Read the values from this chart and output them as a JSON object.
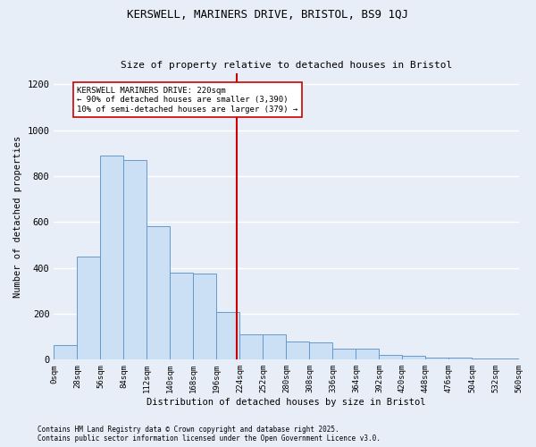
{
  "title1": "KERSWELL, MARINERS DRIVE, BRISTOL, BS9 1QJ",
  "title2": "Size of property relative to detached houses in Bristol",
  "xlabel": "Distribution of detached houses by size in Bristol",
  "ylabel": "Number of detached properties",
  "bin_edges": [
    0,
    28,
    56,
    84,
    112,
    140,
    168,
    196,
    224,
    252,
    280,
    308,
    336,
    364,
    392,
    420,
    448,
    476,
    504,
    532,
    560
  ],
  "bar_heights": [
    65,
    450,
    890,
    870,
    580,
    380,
    375,
    207,
    110,
    110,
    80,
    75,
    50,
    50,
    20,
    15,
    10,
    10,
    5,
    5
  ],
  "bar_color": "#cce0f5",
  "bar_edge_color": "#6699cc",
  "vline_x": 220,
  "vline_color": "#cc0000",
  "annotation_title": "KERSWELL MARINERS DRIVE: 220sqm",
  "annotation_line1": "← 90% of detached houses are smaller (3,390)",
  "annotation_line2": "10% of semi-detached houses are larger (379) →",
  "annotation_box_color": "#ffffff",
  "annotation_box_edge": "#cc0000",
  "background_color": "#e8eef8",
  "grid_color": "#ffffff",
  "ylim": [
    0,
    1250
  ],
  "yticks": [
    0,
    200,
    400,
    600,
    800,
    1000,
    1200
  ],
  "footer1": "Contains HM Land Registry data © Crown copyright and database right 2025.",
  "footer2": "Contains public sector information licensed under the Open Government Licence v3.0."
}
